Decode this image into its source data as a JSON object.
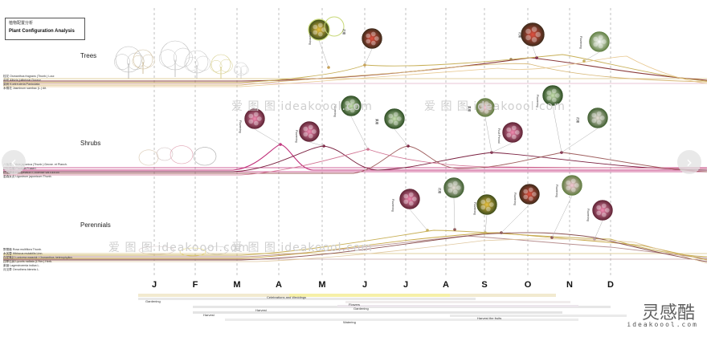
{
  "title": {
    "cn": "植物配置分析",
    "en": "Plant Configuration Analysis"
  },
  "sections": {
    "trees": "Trees",
    "shrubs": "Shrubs",
    "perennials": "Perennials"
  },
  "months": [
    "J",
    "F",
    "M",
    "A",
    "M",
    "J",
    "J",
    "A",
    "S",
    "O",
    "N",
    "D"
  ],
  "legends": {
    "trees": [
      "桂花 Osmanthus fragrans (Thunb.) Lour.",
      "合欢 Albizia julibrissin Durazz.",
      "栾树 Koelreuteria Paniculata",
      "木棉花 Jasminum sambac (L.) Ait."
    ],
    "shrubs": [
      "八仙花 Fatsia japonica (Thunb.) Decne. et Planch.",
      "红叶石楠 Photinia Fraseri",
      "红花檵木 Loropetalum Chinense var.rubrum",
      "金森女贞 Ligustrum japonicum Thunb."
    ],
    "perennials": [
      "野蔷薇 Rosa multiflora Thunb.",
      "木芙蓉 Hibiscus mutabilis Linn.",
      "白花鬼针 Lonicera maackii / Osmanthus heterophyllus",
      "四季石蒜 Lycoris radiata (L'Her.) Herb.",
      "紫薇 Lagerstroemia indica L.",
      "月见草 Oenothera biennis L."
    ]
  },
  "annotations": {
    "flowering": "Flowering",
    "fruit": "Fruit Period",
    "cn_flowering": "花期",
    "cn_fruit": "果期"
  },
  "activities": [
    "Gardening",
    "Celebrations and Weddings",
    "Harvest",
    "Flowers",
    "Gardening",
    "Harvest",
    "Harvest the fruits",
    "Watering"
  ],
  "watermarks": [
    "爱 图 图 ideakoool.com",
    "爱 图 图 ideakoool.com",
    "爱 图 图 ideakoool.com",
    "爱 图 图 ideakoool.com"
  ],
  "brand": {
    "name": "灵感酷",
    "url": "ideakoool.com"
  },
  "nav": {
    "prev": "‹",
    "next": "›"
  },
  "colors": {
    "magenta": "#c0307a",
    "olive": "#c8b058",
    "brown": "#8a3a3a",
    "tan": "#d8b878",
    "pink": "#e67bb0",
    "grid": "#9a9a9a"
  }
}
